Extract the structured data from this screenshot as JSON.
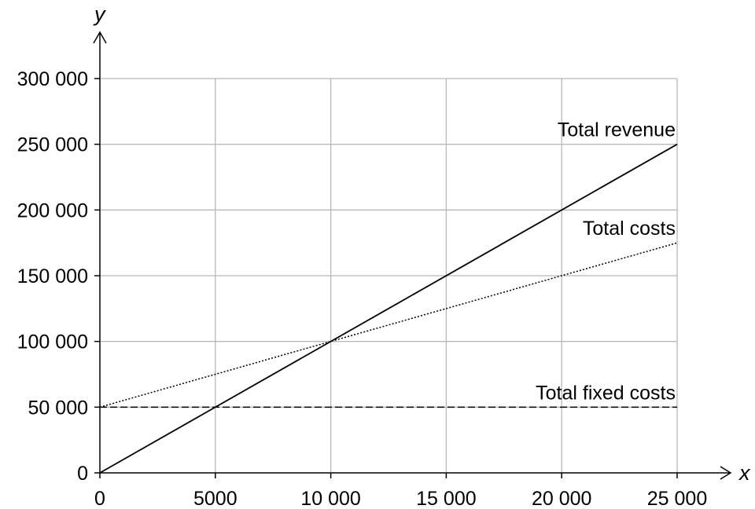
{
  "chart_data": {
    "type": "line",
    "xlabel": "x",
    "ylabel": "y",
    "xlim": [
      0,
      25000
    ],
    "ylim": [
      0,
      300000
    ],
    "x_ticks": [
      0,
      5000,
      10000,
      15000,
      20000,
      25000
    ],
    "x_tick_labels": [
      "0",
      "5000",
      "10 000",
      "15 000",
      "20 000",
      "25 000"
    ],
    "y_ticks": [
      0,
      50000,
      100000,
      150000,
      200000,
      250000,
      300000
    ],
    "y_tick_labels": [
      "0",
      "50 000",
      "100 000",
      "150 000",
      "200 000",
      "250 000",
      "300 000"
    ],
    "grid": true,
    "series": [
      {
        "name": "Total revenue",
        "style": "solid",
        "color": "#000000",
        "x": [
          0,
          25000
        ],
        "y": [
          0,
          250000
        ]
      },
      {
        "name": "Total costs",
        "style": "dotted",
        "color": "#000000",
        "x": [
          0,
          25000
        ],
        "y": [
          50000,
          175000
        ]
      },
      {
        "name": "Total fixed costs",
        "style": "dashed",
        "color": "#000000",
        "x": [
          0,
          25000
        ],
        "y": [
          50000,
          50000
        ]
      }
    ]
  }
}
